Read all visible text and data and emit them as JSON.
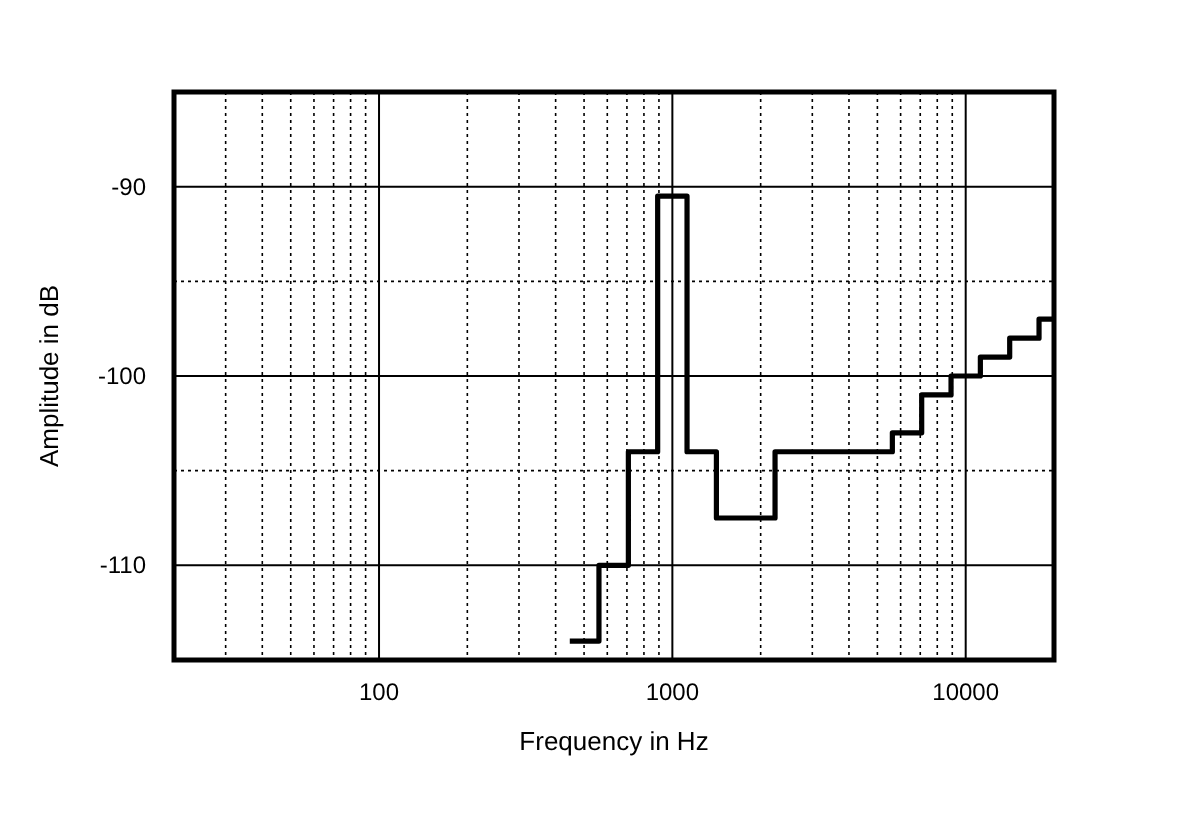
{
  "chart_data": {
    "type": "step",
    "xlabel": "Frequency in Hz",
    "ylabel": "Amplitude in dB",
    "log": "x",
    "grid": true,
    "xlim": [
      20,
      20000
    ],
    "ylim": [
      -115,
      -85
    ],
    "xticks": [
      {
        "value": 30,
        "label": null
      },
      {
        "value": 40,
        "label": null
      },
      {
        "value": 50,
        "label": null
      },
      {
        "value": 60,
        "label": null
      },
      {
        "value": 70,
        "label": null
      },
      {
        "value": 80,
        "label": null
      },
      {
        "value": 90,
        "label": null
      },
      100,
      {
        "value": 200,
        "label": null
      },
      {
        "value": 300,
        "label": null
      },
      {
        "value": 400,
        "label": null
      },
      {
        "value": 500,
        "label": null
      },
      {
        "value": 600,
        "label": null
      },
      {
        "value": 700,
        "label": null
      },
      {
        "value": 800,
        "label": null
      },
      {
        "value": 900,
        "label": null
      },
      1000,
      {
        "value": 2000,
        "label": null
      },
      {
        "value": 3000,
        "label": null
      },
      {
        "value": 4000,
        "label": null
      },
      {
        "value": 5000,
        "label": null
      },
      {
        "value": 6000,
        "label": null
      },
      {
        "value": 7000,
        "label": null
      },
      {
        "value": 8000,
        "label": null
      },
      {
        "value": 9000,
        "label": null
      },
      10000
    ],
    "yticks": [
      -110,
      {
        "value": -105,
        "label": null
      },
      -100,
      {
        "value": -95,
        "label": null
      },
      -90
    ],
    "series": [
      {
        "color": "#000000",
        "x": [
          447,
          562,
          708,
          891,
          1122,
          1413,
          2239,
          5623,
          7079,
          8913,
          11220,
          14125,
          17783,
          20000
        ],
        "values": [
          -114,
          -110,
          -104,
          -90.5,
          -104,
          -107.5,
          -104,
          -103,
          -101,
          -100,
          -99,
          -98,
          -97,
          -97
        ]
      }
    ]
  }
}
